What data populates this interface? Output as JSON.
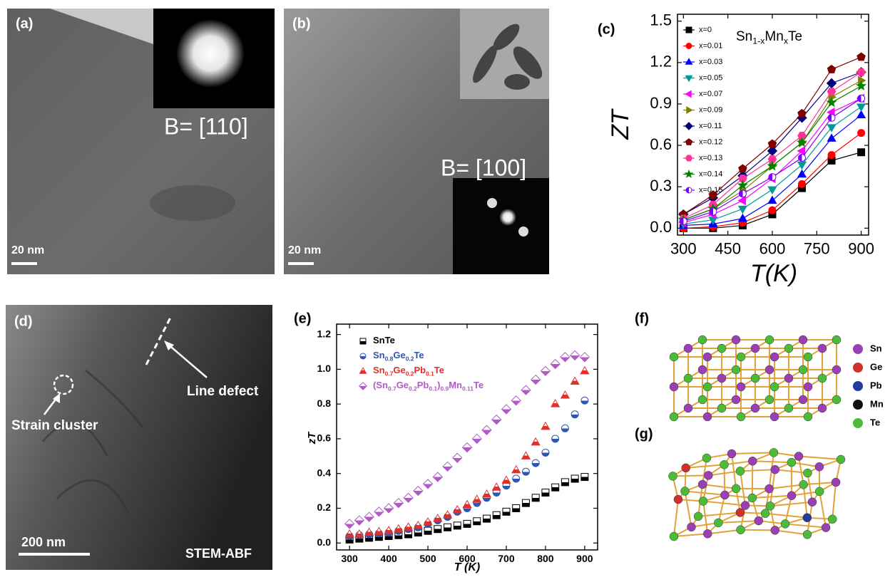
{
  "panels": {
    "a": {
      "label": "(a)",
      "zone_axis": "B= [110]",
      "scale_bar": "20 nm"
    },
    "b": {
      "label": "(b)",
      "zone_axis": "B= [100]",
      "scale_bar": "20 nm"
    },
    "c": {
      "label": "(c)"
    },
    "d": {
      "label": "(d)",
      "line_defect": "Line defect",
      "strain_cluster": "Strain cluster",
      "scale_bar": "200 nm",
      "mode": "STEM-ABF"
    },
    "e": {
      "label": "(e)"
    },
    "f": {
      "label": "(f)",
      "atoms": [
        {
          "name": "Sn",
          "color": "#9b3fb5"
        },
        {
          "name": "Ge",
          "color": "#d0312d"
        },
        {
          "name": "Pb",
          "color": "#1f3d99"
        },
        {
          "name": "Mn",
          "color": "#111111"
        },
        {
          "name": "Te",
          "color": "#4cbb3a"
        }
      ]
    },
    "g": {
      "label": "(g)"
    }
  },
  "chart_data": [
    {
      "type": "line",
      "y_label": "ZT",
      "x_label": "T(K)",
      "annotation": [
        "Sn",
        "1-x",
        "Mn",
        "x",
        "Te"
      ],
      "x": [
        300,
        400,
        500,
        600,
        700,
        800,
        900
      ],
      "xlim": [
        280,
        925
      ],
      "xticks": [
        300,
        450,
        600,
        750,
        900
      ],
      "ylim": [
        -0.05,
        1.55
      ],
      "yticks": [
        {
          "value": 0,
          "label": "0.0"
        },
        0.3,
        0.6,
        0.9,
        1.2,
        1.5
      ],
      "legend": "upper left",
      "legend_text_colored": false,
      "series": [
        {
          "name": "x=0",
          "color": "#000000",
          "marker": "square",
          "values": [
            0.0,
            0.0,
            0.02,
            0.1,
            0.29,
            0.49,
            0.55
          ]
        },
        {
          "name": "x=0.01",
          "color": "#ff0000",
          "marker": "circle",
          "values": [
            0.0,
            0.01,
            0.04,
            0.13,
            0.32,
            0.53,
            0.69
          ]
        },
        {
          "name": "x=0.03",
          "color": "#0000ff",
          "marker": "triangle",
          "values": [
            0.02,
            0.03,
            0.07,
            0.2,
            0.39,
            0.65,
            0.82
          ]
        },
        {
          "name": "x=0.05",
          "color": "#00999a",
          "marker": "triangle-down",
          "values": [
            0.03,
            0.06,
            0.14,
            0.28,
            0.46,
            0.73,
            0.88
          ]
        },
        {
          "name": "x=0.07",
          "color": "#ff00ff",
          "marker": "triangle-left",
          "values": [
            0.04,
            0.1,
            0.2,
            0.36,
            0.56,
            0.84,
            0.94
          ]
        },
        {
          "name": "x=0.09",
          "color": "#808000",
          "marker": "triangle-right",
          "values": [
            0.06,
            0.14,
            0.27,
            0.45,
            0.62,
            0.95,
            1.07
          ]
        },
        {
          "name": "x=0.11",
          "color": "#000080",
          "marker": "diamond",
          "values": [
            0.1,
            0.22,
            0.38,
            0.56,
            0.8,
            1.05,
            1.13
          ]
        },
        {
          "name": "x=0.12",
          "color": "#800000",
          "marker": "pentagon",
          "values": [
            0.1,
            0.24,
            0.43,
            0.61,
            0.83,
            1.15,
            1.24
          ]
        },
        {
          "name": "x=0.13",
          "color": "#ff3399",
          "marker": "hexagon",
          "values": [
            0.07,
            0.17,
            0.36,
            0.5,
            0.67,
            0.99,
            1.13
          ]
        },
        {
          "name": "x=0.14",
          "color": "#008000",
          "marker": "star",
          "values": [
            0.06,
            0.14,
            0.31,
            0.45,
            0.62,
            0.91,
            1.03
          ]
        },
        {
          "name": "x=0.15",
          "color": "#8000ff",
          "marker": "half-circle",
          "values": [
            0.05,
            0.12,
            0.25,
            0.37,
            0.51,
            0.8,
            0.94
          ]
        }
      ]
    },
    {
      "type": "scatter",
      "y_label": "zT",
      "x_label": "T (K)",
      "x": [
        300,
        325,
        350,
        375,
        400,
        425,
        450,
        475,
        500,
        525,
        550,
        575,
        600,
        625,
        650,
        675,
        700,
        725,
        750,
        775,
        800,
        825,
        850,
        875,
        900
      ],
      "xlim": [
        267,
        933
      ],
      "xticks": [
        300,
        400,
        500,
        600,
        700,
        800,
        900
      ],
      "ylim": [
        -0.04,
        1.26
      ],
      "yticks": [
        {
          "value": 0,
          "label": "0.0"
        },
        0.2,
        0.4,
        0.6,
        0.8,
        {
          "value": 1,
          "label": "1.0"
        },
        1.2
      ],
      "legend": "upper left",
      "legend_text_colored": true,
      "marker_fill": "half",
      "series": [
        {
          "name": [
            "SnTe"
          ],
          "color": "#000000",
          "marker": "square",
          "values": [
            0.02,
            0.025,
            0.03,
            0.035,
            0.04,
            0.045,
            0.05,
            0.06,
            0.07,
            0.08,
            0.09,
            0.1,
            0.11,
            0.125,
            0.14,
            0.16,
            0.18,
            0.2,
            0.23,
            0.26,
            0.29,
            0.32,
            0.35,
            0.37,
            0.38
          ]
        },
        {
          "name": [
            "Sn",
            "0.8",
            "Ge",
            "0.2",
            "Te"
          ],
          "color": "#2f56b0",
          "marker": "circle",
          "values": [
            0.04,
            0.045,
            0.05,
            0.055,
            0.06,
            0.07,
            0.08,
            0.09,
            0.11,
            0.13,
            0.15,
            0.18,
            0.2,
            0.23,
            0.26,
            0.29,
            0.33,
            0.37,
            0.41,
            0.46,
            0.52,
            0.6,
            0.66,
            0.74,
            0.82
          ]
        },
        {
          "name": [
            "Sn",
            "0.7",
            "Ge",
            "0.2",
            "Pb",
            "0.1",
            "Te"
          ],
          "color": "#e0302a",
          "marker": "triangle",
          "values": [
            0.05,
            0.05,
            0.06,
            0.065,
            0.07,
            0.08,
            0.09,
            0.1,
            0.12,
            0.14,
            0.16,
            0.19,
            0.22,
            0.25,
            0.28,
            0.32,
            0.36,
            0.42,
            0.5,
            0.58,
            0.67,
            0.8,
            0.85,
            0.93,
            0.99
          ]
        },
        {
          "name": [
            "(Sn",
            "0.7",
            "Ge",
            "0.2",
            "Pb",
            "0.1",
            ")",
            "0.9",
            "Mn",
            "0.11",
            "Te"
          ],
          "color": "#b05ac8",
          "marker": "diamond",
          "values": [
            0.11,
            0.13,
            0.15,
            0.18,
            0.2,
            0.23,
            0.26,
            0.3,
            0.34,
            0.38,
            0.44,
            0.49,
            0.55,
            0.6,
            0.65,
            0.71,
            0.77,
            0.82,
            0.88,
            0.94,
            0.99,
            1.03,
            1.07,
            1.08,
            1.07
          ]
        }
      ]
    }
  ]
}
